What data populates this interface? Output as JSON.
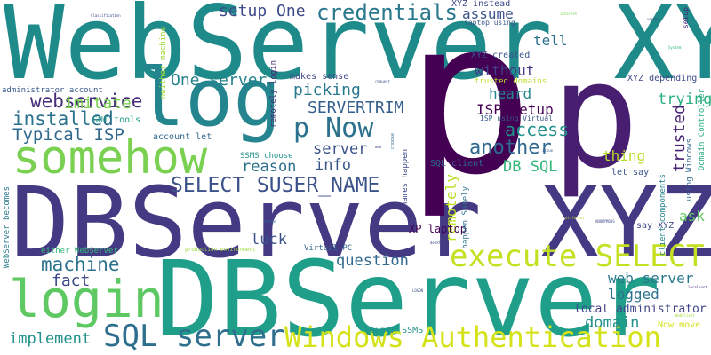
{
  "words": [
    {
      "text": "WebServer XYZ",
      "color": "#1e8a8a"
    },
    {
      "text": "DBServer XYZ",
      "color": "#443983"
    },
    {
      "text": "DBServer",
      "color": "#1f9e89"
    },
    {
      "text": "p",
      "color": "#440154"
    },
    {
      "text": "p",
      "color": "#481e70"
    },
    {
      "text": "log",
      "color": "#25858e"
    },
    {
      "text": "somehow",
      "color": "#7ad151"
    },
    {
      "text": "login",
      "color": "#5ec962"
    },
    {
      "text": "execute SELECT",
      "color": "#c5e021"
    },
    {
      "text": "Windows Authentication",
      "color": "#d5e21a"
    },
    {
      "text": "SQL server",
      "color": "#2e6f8e"
    },
    {
      "text": "SELECT SUSER_NAME",
      "color": "#3b528b"
    },
    {
      "text": "p Now",
      "color": "#2c728e"
    },
    {
      "text": "credentials",
      "color": "#2a788e"
    },
    {
      "text": "setup One",
      "color": "#3e4a89"
    },
    {
      "text": "webservice",
      "color": "#472c7a"
    },
    {
      "text": "installed",
      "color": "#2c728e"
    },
    {
      "text": "Typical ISP",
      "color": "#31688e"
    },
    {
      "text": "imitate",
      "color": "#7ad151"
    },
    {
      "text": "One server",
      "color": "#26828e"
    },
    {
      "text": "picking",
      "color": "#2a788e"
    },
    {
      "text": "SERVERTRIM",
      "color": "#355f8d"
    },
    {
      "text": "another",
      "color": "#31688e"
    },
    {
      "text": "access",
      "color": "#21918c"
    },
    {
      "text": "server",
      "color": "#3b528b"
    },
    {
      "text": "reason",
      "color": "#2d708e"
    },
    {
      "text": "info",
      "color": "#38588c"
    },
    {
      "text": "machine",
      "color": "#2c728e"
    },
    {
      "text": "fact",
      "color": "#3e4a89"
    },
    {
      "text": "luck",
      "color": "#3b528b"
    },
    {
      "text": "question",
      "color": "#31688e"
    },
    {
      "text": "implement",
      "color": "#21918c"
    },
    {
      "text": "web server",
      "color": "#2a788e"
    },
    {
      "text": "logged",
      "color": "#2c728e"
    },
    {
      "text": "domain",
      "color": "#21918c"
    },
    {
      "text": "local administrator",
      "color": "#404688"
    },
    {
      "text": "assume",
      "color": "#3b528b"
    },
    {
      "text": "tell",
      "color": "#2d708e"
    },
    {
      "text": "without",
      "color": "#433e85"
    },
    {
      "text": "heard",
      "color": "#25858e"
    },
    {
      "text": "ISP setup",
      "color": "#440154"
    },
    {
      "text": "trying",
      "color": "#29af7f"
    },
    {
      "text": "trusted",
      "color": "#482475"
    },
    {
      "text": "thing",
      "color": "#b5de2b"
    },
    {
      "text": "ask",
      "color": "#5ec962"
    },
    {
      "text": "DB SQL",
      "color": "#35b779"
    },
    {
      "text": "remotely",
      "color": "#bddf26"
    },
    {
      "text": "XP laptop",
      "color": "#440154"
    },
    {
      "text": "SQL client",
      "color": "#31688e"
    },
    {
      "text": "XYZ created",
      "color": "#3b528b"
    },
    {
      "text": "XYZ instead",
      "color": "#3e4a89"
    },
    {
      "text": "laptop using",
      "color": "#38588c"
    },
    {
      "text": "trusted domains",
      "color": "#bddf26"
    },
    {
      "text": "ISP using Virtual",
      "color": "#38588c"
    },
    {
      "text": "XYZ depending",
      "color": "#3e4a89"
    },
    {
      "text": "makes sense",
      "color": "#3e4a89"
    },
    {
      "text": "setup",
      "color": "#482878"
    },
    {
      "text": "account let",
      "color": "#31688e"
    },
    {
      "text": "GUI tools",
      "color": "#1f9e89"
    },
    {
      "text": "administrator account",
      "color": "#38588c"
    },
    {
      "text": "SSMS choose",
      "color": "#21918c"
    },
    {
      "text": "let say",
      "color": "#3b528b"
    },
    {
      "text": "say XYZ",
      "color": "#3e4a89"
    },
    {
      "text": "Now move",
      "color": "#d5e21a"
    },
    {
      "text": "launch SSMS",
      "color": "#21918c"
    },
    {
      "text": "Virtual PC",
      "color": "#31688e"
    },
    {
      "text": "either WebServer",
      "color": "#35b779"
    },
    {
      "text": "production environment",
      "color": "#a0da39"
    },
    {
      "text": "WebServer becomes",
      "color": "#2a788e"
    },
    {
      "text": "neither machine",
      "color": "#a0da39"
    },
    {
      "text": "remotely login",
      "color": "#482878"
    },
    {
      "text": "names happen",
      "color": "#3e4a89"
    },
    {
      "text": "happen Surely",
      "color": "#2c728e"
    },
    {
      "text": "client components",
      "color": "#26828e"
    },
    {
      "text": "using Windows",
      "color": "#31688e"
    },
    {
      "text": "Domain Controller",
      "color": "#29af7f"
    },
    {
      "text": "Classification",
      "color": "#3e4a89"
    },
    {
      "text": "Internet",
      "color": "#7ad151"
    },
    {
      "text": "request",
      "color": "#3e4a89"
    },
    {
      "text": "LOGON",
      "color": "#3b528b"
    },
    {
      "text": "ANONYMOUS",
      "color": "#3e4a89"
    },
    {
      "text": "different",
      "color": "#bddf26"
    },
    {
      "text": "WebClient",
      "color": "#a0da39"
    },
    {
      "text": "localhost",
      "color": "#482878"
    },
    {
      "text": "desktop",
      "color": "#3e4a89"
    },
    {
      "text": "vender",
      "color": "#3e4a89"
    },
    {
      "text": "System",
      "color": "#35b779"
    },
    {
      "text": "issue",
      "color": "#38588c"
    },
    {
      "text": "web",
      "color": "#3e4a89"
    },
    {
      "text": "settle",
      "color": "#2a788e"
    },
    {
      "text": "choose",
      "color": "#31688e"
    }
  ]
}
